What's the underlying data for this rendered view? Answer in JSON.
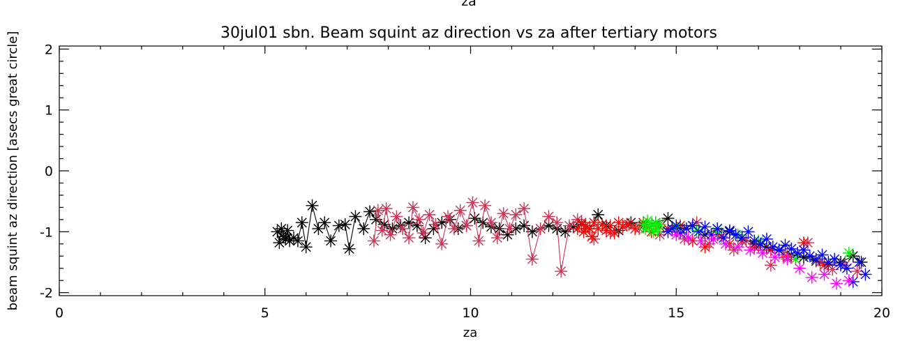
{
  "top_fragment": "za",
  "chart_data": {
    "type": "scatter",
    "title": "30jul01 sbn. Beam squint az direction vs za after tertiary motors",
    "xlabel": "za",
    "ylabel": "beam squint az direction  [asecs great circle]",
    "xlim": [
      0,
      20
    ],
    "ylim": [
      -2.05,
      2.05
    ],
    "xticks": [
      0,
      5,
      10,
      15,
      20
    ],
    "xtick_labels": [
      "0",
      "5",
      "10",
      "15",
      "20"
    ],
    "yticks": [
      2,
      1,
      0,
      -1,
      -2
    ],
    "ytick_labels": [
      "2",
      "1",
      "0",
      "-1",
      "-2"
    ],
    "grid": false,
    "marker": "asterisk",
    "series": [
      {
        "color": "#000000",
        "connected": true,
        "x": [
          5.3,
          5.35,
          5.4,
          5.45,
          5.5,
          5.55,
          5.6,
          5.7,
          5.8,
          5.9,
          6.0,
          6.15,
          6.3,
          6.45,
          6.6,
          6.8,
          6.95,
          7.05,
          7.2,
          7.4,
          7.55,
          7.7,
          7.9,
          8.1,
          8.3,
          8.5,
          8.7,
          8.9,
          9.1,
          9.3,
          9.5,
          9.7,
          9.9,
          10.1,
          10.3,
          10.5,
          10.7,
          10.9,
          11.1,
          11.3,
          11.5,
          11.7,
          11.9,
          12.1,
          12.3,
          12.5,
          12.7,
          12.9,
          13.1,
          13.3,
          13.6,
          13.9,
          14.2,
          14.5,
          14.8,
          15.1,
          15.4,
          15.7,
          16.0,
          16.3,
          16.6,
          16.9,
          17.2,
          17.5,
          17.8,
          18.1,
          18.4,
          18.7,
          19.0,
          19.3,
          19.5
        ],
        "y": [
          -1.0,
          -1.18,
          -0.95,
          -1.08,
          -1.12,
          -0.98,
          -1.15,
          -1.1,
          -1.15,
          -0.85,
          -1.25,
          -0.57,
          -0.95,
          -0.85,
          -1.15,
          -0.9,
          -0.88,
          -1.28,
          -0.75,
          -0.95,
          -0.67,
          -0.8,
          -0.88,
          -0.95,
          -0.9,
          -0.85,
          -0.9,
          -1.1,
          -0.95,
          -0.85,
          -0.8,
          -0.95,
          -0.9,
          -0.78,
          -0.85,
          -0.92,
          -0.95,
          -1.05,
          -0.95,
          -0.9,
          -1.0,
          -0.95,
          -0.9,
          -0.95,
          -1.0,
          -0.92,
          -0.88,
          -0.95,
          -0.72,
          -0.9,
          -0.98,
          -0.85,
          -0.9,
          -0.85,
          -0.78,
          -0.95,
          -0.9,
          -1.05,
          -0.95,
          -1.0,
          -1.1,
          -1.2,
          -1.25,
          -1.3,
          -1.38,
          -1.42,
          -1.48,
          -1.55,
          -1.5,
          -1.4,
          -1.5
        ]
      },
      {
        "color": "#cc3355",
        "connected": true,
        "x": [
          7.65,
          7.75,
          7.85,
          7.95,
          8.05,
          8.2,
          8.35,
          8.5,
          8.6,
          8.75,
          8.85,
          9.0,
          9.15,
          9.3,
          9.45,
          9.6,
          9.75,
          9.9,
          10.05,
          10.2,
          10.35,
          10.5,
          10.65,
          10.8,
          10.95,
          11.1,
          11.3,
          11.5,
          11.7,
          11.9,
          12.1,
          12.2,
          12.4,
          12.6
        ],
        "y": [
          -1.15,
          -0.65,
          -0.98,
          -0.62,
          -1.05,
          -0.75,
          -0.95,
          -1.1,
          -0.6,
          -0.8,
          -1.02,
          -0.72,
          -0.88,
          -1.2,
          -0.75,
          -0.95,
          -0.65,
          -0.9,
          -0.52,
          -1.15,
          -0.57,
          -0.85,
          -1.1,
          -0.7,
          -0.95,
          -0.72,
          -0.62,
          -1.45,
          -0.95,
          -0.75,
          -0.85,
          -1.65,
          -0.9,
          -0.8
        ]
      },
      {
        "color": "#cc3355",
        "connected": false,
        "x": [
          12.8,
          13.0,
          13.4,
          13.8,
          14.1,
          14.6,
          15.0,
          15.2,
          15.5,
          15.8,
          16.1,
          16.4,
          16.7,
          17.0,
          17.3,
          17.6,
          17.9,
          18.2,
          18.5,
          18.8,
          19.1,
          19.4
        ],
        "y": [
          -0.95,
          -1.12,
          -1.02,
          -0.88,
          -0.95,
          -1.05,
          -0.95,
          -1.12,
          -0.85,
          -1.2,
          -1.08,
          -1.3,
          -1.15,
          -1.25,
          -1.55,
          -1.38,
          -1.45,
          -1.18,
          -1.5,
          -1.62,
          -1.55,
          -1.65
        ]
      },
      {
        "color": "#ff0000",
        "connected": false,
        "x": [
          12.6,
          12.7,
          12.75,
          12.8,
          12.9,
          12.95,
          13.0,
          13.1,
          13.2,
          13.3,
          13.4,
          13.5,
          13.6,
          13.7,
          13.85,
          14.0,
          14.2,
          14.4,
          14.6,
          14.8,
          15.1,
          15.4,
          15.7,
          16.0,
          16.3,
          16.6,
          16.9,
          17.3,
          17.7,
          18.1,
          18.6
        ],
        "y": [
          -0.95,
          -0.85,
          -1.0,
          -0.9,
          -0.95,
          -1.08,
          -0.85,
          -0.95,
          -0.88,
          -0.98,
          -0.9,
          -1.02,
          -0.85,
          -0.92,
          -0.88,
          -0.95,
          -0.85,
          -1.0,
          -0.92,
          -0.95,
          -0.9,
          -1.15,
          -1.25,
          -1.05,
          -1.2,
          -1.15,
          -1.25,
          -1.3,
          -1.42,
          -1.18,
          -1.55
        ]
      },
      {
        "color": "#00ee00",
        "connected": false,
        "x": [
          14.2,
          14.25,
          14.3,
          14.35,
          14.4,
          14.45,
          14.5,
          14.55,
          14.6,
          15.0,
          15.5,
          16.0,
          16.5,
          17.0,
          17.5,
          17.9,
          19.2
        ],
        "y": [
          -0.88,
          -0.95,
          -0.82,
          -0.92,
          -0.9,
          -1.0,
          -0.85,
          -0.95,
          -0.88,
          -0.92,
          -0.98,
          -1.0,
          -1.05,
          -1.15,
          -1.3,
          -1.45,
          -1.35
        ]
      },
      {
        "color": "#0000ff",
        "connected": false,
        "x": [
          14.8,
          14.9,
          15.0,
          15.1,
          15.25,
          15.4,
          15.55,
          15.7,
          15.85,
          16.0,
          16.15,
          16.3,
          16.45,
          16.6,
          16.75,
          16.9,
          17.05,
          17.2,
          17.35,
          17.5,
          17.65,
          17.8,
          17.95,
          18.1,
          18.25,
          18.4,
          18.55,
          18.7,
          18.85,
          19.0,
          19.15,
          19.3,
          19.45,
          19.6
        ],
        "y": [
          -1.0,
          -0.95,
          -0.9,
          -1.02,
          -0.95,
          -0.9,
          -1.0,
          -0.92,
          -1.05,
          -0.95,
          -1.1,
          -0.98,
          -1.05,
          -1.1,
          -1.0,
          -1.15,
          -1.2,
          -1.12,
          -1.25,
          -1.3,
          -1.22,
          -1.28,
          -1.35,
          -1.3,
          -1.4,
          -1.45,
          -1.38,
          -1.5,
          -1.45,
          -1.55,
          -1.6,
          -1.82,
          -1.5,
          -1.7
        ]
      },
      {
        "color": "#ff00ff",
        "connected": false,
        "x": [
          15.0,
          15.3,
          15.6,
          15.9,
          16.2,
          16.5,
          16.8,
          17.1,
          17.4,
          17.7,
          18.0,
          18.3,
          18.6,
          18.9,
          19.2
        ],
        "y": [
          -1.05,
          -1.1,
          -1.15,
          -1.12,
          -1.2,
          -1.25,
          -1.3,
          -1.35,
          -1.42,
          -1.45,
          -1.6,
          -1.75,
          -1.7,
          -1.85,
          -1.8
        ]
      }
    ]
  }
}
